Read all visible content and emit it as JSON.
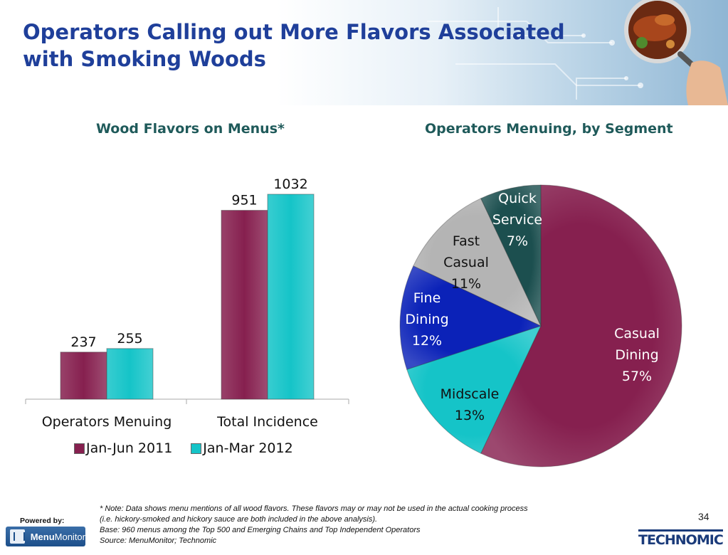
{
  "title": "Operators Calling out More Flavors Associated with Smoking Woods",
  "colors": {
    "title": "#1f3f9a",
    "chart_title": "#1f5a5a",
    "series1": "#86204f",
    "series2": "#15c4c8"
  },
  "chart_data": [
    {
      "type": "bar",
      "title": "Wood Flavors on Menus*",
      "categories": [
        "Operators Menuing",
        "Total Incidence"
      ],
      "series": [
        {
          "name": "Jan-Jun 2011",
          "values": [
            237,
            951
          ]
        },
        {
          "name": "Jan-Mar 2012",
          "values": [
            255,
            1032
          ]
        }
      ],
      "ylim": [
        0,
        1100
      ],
      "grid": false,
      "legend": "bottom"
    },
    {
      "type": "pie",
      "title": "Operators Menuing, by Segment",
      "slices": [
        {
          "label": "Casual Dining",
          "value": 57,
          "pct_label": "57%",
          "color": "#86204f"
        },
        {
          "label": "Midscale",
          "value": 13,
          "pct_label": "13%",
          "color": "#15c4c8"
        },
        {
          "label": "Fine Dining",
          "value": 12,
          "pct_label": "12%",
          "color": "#0b22b8"
        },
        {
          "label": "Fast Casual",
          "value": 11,
          "pct_label": "11%",
          "color": "#b4b4b4"
        },
        {
          "label": "Quick Service",
          "value": 7,
          "pct_label": "7%",
          "color": "#1c4f4f"
        }
      ]
    }
  ],
  "notes": [
    "* Note: Data shows menu mentions of all wood flavors. These flavors may or may not be used in the actual cooking process",
    "(i.e. hickory-smoked and hickory sauce are both included in the above analysis).",
    "Base: 960 menus among the Top 500 and Emerging Chains and Top Independent Operators",
    "Source: MenuMonitor; Technomic"
  ],
  "footer": {
    "powered_by": "Powered by:",
    "menumonitor_logo": {
      "part1": "Menu",
      "part2": "Monitor"
    },
    "page_number": "34",
    "technomic_logo": "TECHNOMIC"
  }
}
